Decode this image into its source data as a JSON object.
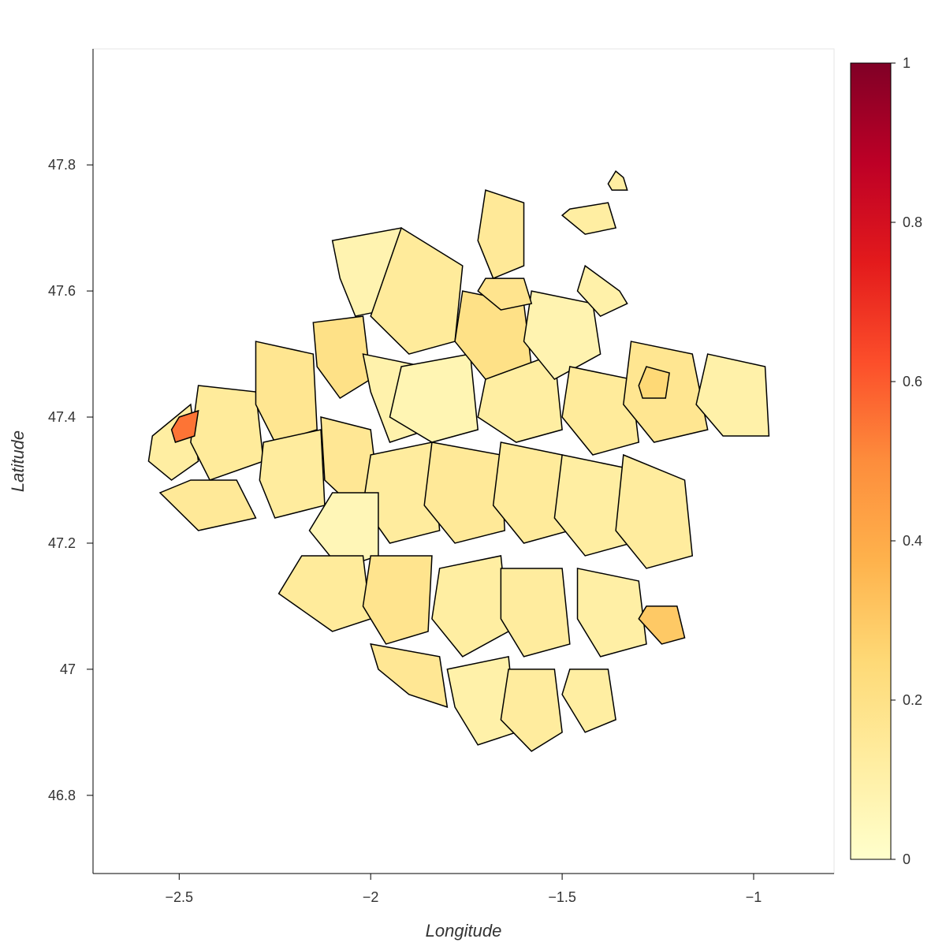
{
  "chart_data": {
    "type": "choropleth",
    "xlabel": "Longitude",
    "ylabel": "Latitude",
    "xlim": [
      -2.725,
      -0.79
    ],
    "ylim": [
      46.676,
      47.984
    ],
    "xticks": [
      {
        "value": -2.5,
        "label": "−2.5"
      },
      {
        "value": -2,
        "label": "−2"
      },
      {
        "value": -1.5,
        "label": "−1.5"
      },
      {
        "value": -1,
        "label": "−1"
      }
    ],
    "yticks": [
      46.8,
      47,
      47.2,
      47.4,
      47.6,
      47.8
    ],
    "colormap": [
      "#ffffcc",
      "#ffeda0",
      "#fed976",
      "#feb24c",
      "#fd8d3c",
      "#fc4e2a",
      "#e31a1c",
      "#bd0026",
      "#800026"
    ],
    "colorbar_lim": [
      0,
      1
    ],
    "colorbar_ticks": [
      0,
      0.2,
      0.4,
      0.6,
      0.8,
      1
    ],
    "regions": [
      {
        "value": 0.12,
        "lon": [
          -2.57,
          -2.47,
          -2.45,
          -2.52,
          -2.58
        ],
        "lat": [
          47.37,
          47.42,
          47.33,
          47.3,
          47.33
        ]
      },
      {
        "value": 0.14,
        "lon": [
          -2.45,
          -2.3,
          -2.28,
          -2.42,
          -2.47
        ],
        "lat": [
          47.45,
          47.44,
          47.33,
          47.3,
          47.36
        ]
      },
      {
        "value": 0.15,
        "lon": [
          -2.47,
          -2.35,
          -2.3,
          -2.45,
          -2.55
        ],
        "lat": [
          47.3,
          47.3,
          47.24,
          47.22,
          47.28
        ]
      },
      {
        "value": 0.17,
        "lon": [
          -2.3,
          -2.15,
          -2.14,
          -2.25,
          -2.3
        ],
        "lat": [
          47.52,
          47.5,
          47.38,
          47.36,
          47.42
        ]
      },
      {
        "value": 0.13,
        "lon": [
          -2.28,
          -2.13,
          -2.12,
          -2.25,
          -2.29
        ],
        "lat": [
          47.36,
          47.38,
          47.26,
          47.24,
          47.3
        ]
      },
      {
        "value": 0.2,
        "lon": [
          -2.15,
          -2.02,
          -2.0,
          -2.08,
          -2.14
        ],
        "lat": [
          47.55,
          47.56,
          47.46,
          47.43,
          47.48
        ]
      },
      {
        "value": 0.16,
        "lon": [
          -2.13,
          -2.0,
          -1.98,
          -2.05,
          -2.12
        ],
        "lat": [
          47.4,
          47.38,
          47.28,
          47.26,
          47.3
        ]
      },
      {
        "value": 0.08,
        "lon": [
          -2.1,
          -1.92,
          -1.88,
          -2.04,
          -2.08
        ],
        "lat": [
          47.68,
          47.7,
          47.58,
          47.56,
          47.62
        ]
      },
      {
        "value": 0.14,
        "lon": [
          -1.92,
          -1.76,
          -1.78,
          -1.9,
          -2.0
        ],
        "lat": [
          47.7,
          47.64,
          47.52,
          47.5,
          47.56
        ]
      },
      {
        "value": 0.09,
        "lon": [
          -2.02,
          -1.86,
          -1.85,
          -1.95,
          -2.0
        ],
        "lat": [
          47.5,
          47.48,
          47.38,
          47.36,
          47.44
        ]
      },
      {
        "value": 0.07,
        "lon": [
          -1.92,
          -1.74,
          -1.72,
          -1.84,
          -1.95
        ],
        "lat": [
          47.48,
          47.5,
          47.38,
          47.36,
          47.4
        ]
      },
      {
        "value": 0.2,
        "lon": [
          -1.76,
          -1.6,
          -1.58,
          -1.7,
          -1.78
        ],
        "lat": [
          47.6,
          47.58,
          47.48,
          47.46,
          47.52
        ]
      },
      {
        "value": 0.12,
        "lon": [
          -1.7,
          -1.52,
          -1.5,
          -1.62,
          -1.72
        ],
        "lat": [
          47.46,
          47.5,
          47.38,
          47.36,
          47.4
        ]
      },
      {
        "value": 0.08,
        "lon": [
          -1.58,
          -1.42,
          -1.4,
          -1.52,
          -1.6
        ],
        "lat": [
          47.6,
          47.58,
          47.5,
          47.46,
          47.52
        ]
      },
      {
        "value": 0.14,
        "lon": [
          -1.48,
          -1.32,
          -1.3,
          -1.42,
          -1.5
        ],
        "lat": [
          47.48,
          47.46,
          47.36,
          47.34,
          47.4
        ]
      },
      {
        "value": 0.17,
        "lon": [
          -1.32,
          -1.16,
          -1.12,
          -1.26,
          -1.34
        ],
        "lat": [
          47.52,
          47.5,
          47.38,
          47.36,
          47.42
        ]
      },
      {
        "value": 0.25,
        "lon": [
          -1.28,
          -1.22,
          -1.23,
          -1.29,
          -1.3
        ],
        "lat": [
          47.48,
          47.47,
          47.43,
          47.43,
          47.45
        ]
      },
      {
        "value": 0.1,
        "lon": [
          -1.12,
          -0.97,
          -0.96,
          -1.08,
          -1.15
        ],
        "lat": [
          47.5,
          47.48,
          47.37,
          47.37,
          47.42
        ]
      },
      {
        "value": 0.13,
        "lon": [
          -2.0,
          -1.84,
          -1.82,
          -1.95,
          -2.02
        ],
        "lat": [
          47.34,
          47.36,
          47.22,
          47.2,
          47.26
        ]
      },
      {
        "value": 0.06,
        "lon": [
          -2.1,
          -1.98,
          -1.98,
          -2.08,
          -2.16
        ],
        "lat": [
          47.28,
          47.28,
          47.18,
          47.16,
          47.22
        ]
      },
      {
        "value": 0.15,
        "lon": [
          -1.84,
          -1.66,
          -1.65,
          -1.78,
          -1.86
        ],
        "lat": [
          47.36,
          47.34,
          47.22,
          47.2,
          47.26
        ]
      },
      {
        "value": 0.14,
        "lon": [
          -1.66,
          -1.5,
          -1.48,
          -1.6,
          -1.68
        ],
        "lat": [
          47.36,
          47.34,
          47.22,
          47.2,
          47.26
        ]
      },
      {
        "value": 0.12,
        "lon": [
          -1.5,
          -1.34,
          -1.32,
          -1.44,
          -1.52
        ],
        "lat": [
          47.34,
          47.32,
          47.2,
          47.18,
          47.24
        ]
      },
      {
        "value": 0.13,
        "lon": [
          -1.34,
          -1.18,
          -1.16,
          -1.28,
          -1.36
        ],
        "lat": [
          47.34,
          47.3,
          47.18,
          47.16,
          47.22
        ]
      },
      {
        "value": 0.14,
        "lon": [
          -2.18,
          -2.02,
          -2.0,
          -2.1,
          -2.24
        ],
        "lat": [
          47.18,
          47.18,
          47.08,
          47.06,
          47.12
        ]
      },
      {
        "value": 0.18,
        "lon": [
          -2.0,
          -1.84,
          -1.85,
          -1.96,
          -2.02
        ],
        "lat": [
          47.18,
          47.18,
          47.06,
          47.04,
          47.1
        ]
      },
      {
        "value": 0.12,
        "lon": [
          -1.82,
          -1.66,
          -1.64,
          -1.76,
          -1.84
        ],
        "lat": [
          47.16,
          47.18,
          47.06,
          47.02,
          47.08
        ]
      },
      {
        "value": 0.13,
        "lon": [
          -1.66,
          -1.5,
          -1.48,
          -1.6,
          -1.66
        ],
        "lat": [
          47.16,
          47.16,
          47.04,
          47.02,
          47.08
        ]
      },
      {
        "value": 0.11,
        "lon": [
          -1.46,
          -1.3,
          -1.28,
          -1.4,
          -1.46
        ],
        "lat": [
          47.16,
          47.14,
          47.04,
          47.02,
          47.08
        ]
      },
      {
        "value": 0.3,
        "lon": [
          -1.28,
          -1.2,
          -1.18,
          -1.24,
          -1.3
        ],
        "lat": [
          47.1,
          47.1,
          47.05,
          47.04,
          47.08
        ]
      },
      {
        "value": 0.16,
        "lon": [
          -2.0,
          -1.82,
          -1.8,
          -1.9,
          -1.98
        ],
        "lat": [
          47.04,
          47.02,
          46.94,
          46.96,
          47.0
        ]
      },
      {
        "value": 0.1,
        "lon": [
          -1.8,
          -1.64,
          -1.62,
          -1.72,
          -1.78
        ],
        "lat": [
          47.0,
          47.02,
          46.9,
          46.88,
          46.94
        ]
      },
      {
        "value": 0.13,
        "lon": [
          -1.64,
          -1.52,
          -1.5,
          -1.58,
          -1.66
        ],
        "lat": [
          47.0,
          47.0,
          46.9,
          46.87,
          46.92
        ]
      },
      {
        "value": 0.12,
        "lon": [
          -1.48,
          -1.38,
          -1.36,
          -1.44,
          -1.5
        ],
        "lat": [
          47.0,
          47.0,
          46.92,
          46.9,
          46.96
        ]
      },
      {
        "value": 0.15,
        "lon": [
          -1.7,
          -1.6,
          -1.6,
          -1.68,
          -1.72
        ],
        "lat": [
          47.76,
          47.74,
          47.64,
          47.62,
          47.68
        ]
      },
      {
        "value": 0.18,
        "lon": [
          -1.7,
          -1.6,
          -1.58,
          -1.66,
          -1.72
        ],
        "lat": [
          47.62,
          47.62,
          47.58,
          47.57,
          47.6
        ]
      },
      {
        "value": 0.12,
        "lon": [
          -1.48,
          -1.38,
          -1.36,
          -1.44,
          -1.5
        ],
        "lat": [
          47.73,
          47.74,
          47.7,
          47.69,
          47.72
        ]
      },
      {
        "value": 0.1,
        "lon": [
          -1.44,
          -1.35,
          -1.33,
          -1.4,
          -1.46
        ],
        "lat": [
          47.64,
          47.6,
          47.58,
          47.56,
          47.6
        ]
      },
      {
        "value": 0.12,
        "lon": [
          -1.36,
          -1.34,
          -1.33,
          -1.37,
          -1.38
        ],
        "lat": [
          47.79,
          47.78,
          47.76,
          47.76,
          47.77
        ]
      },
      {
        "value": 0.55,
        "lon": [
          -2.5,
          -2.45,
          -2.46,
          -2.51,
          -2.52
        ],
        "lat": [
          47.4,
          47.41,
          47.37,
          47.36,
          47.38
        ]
      }
    ]
  }
}
